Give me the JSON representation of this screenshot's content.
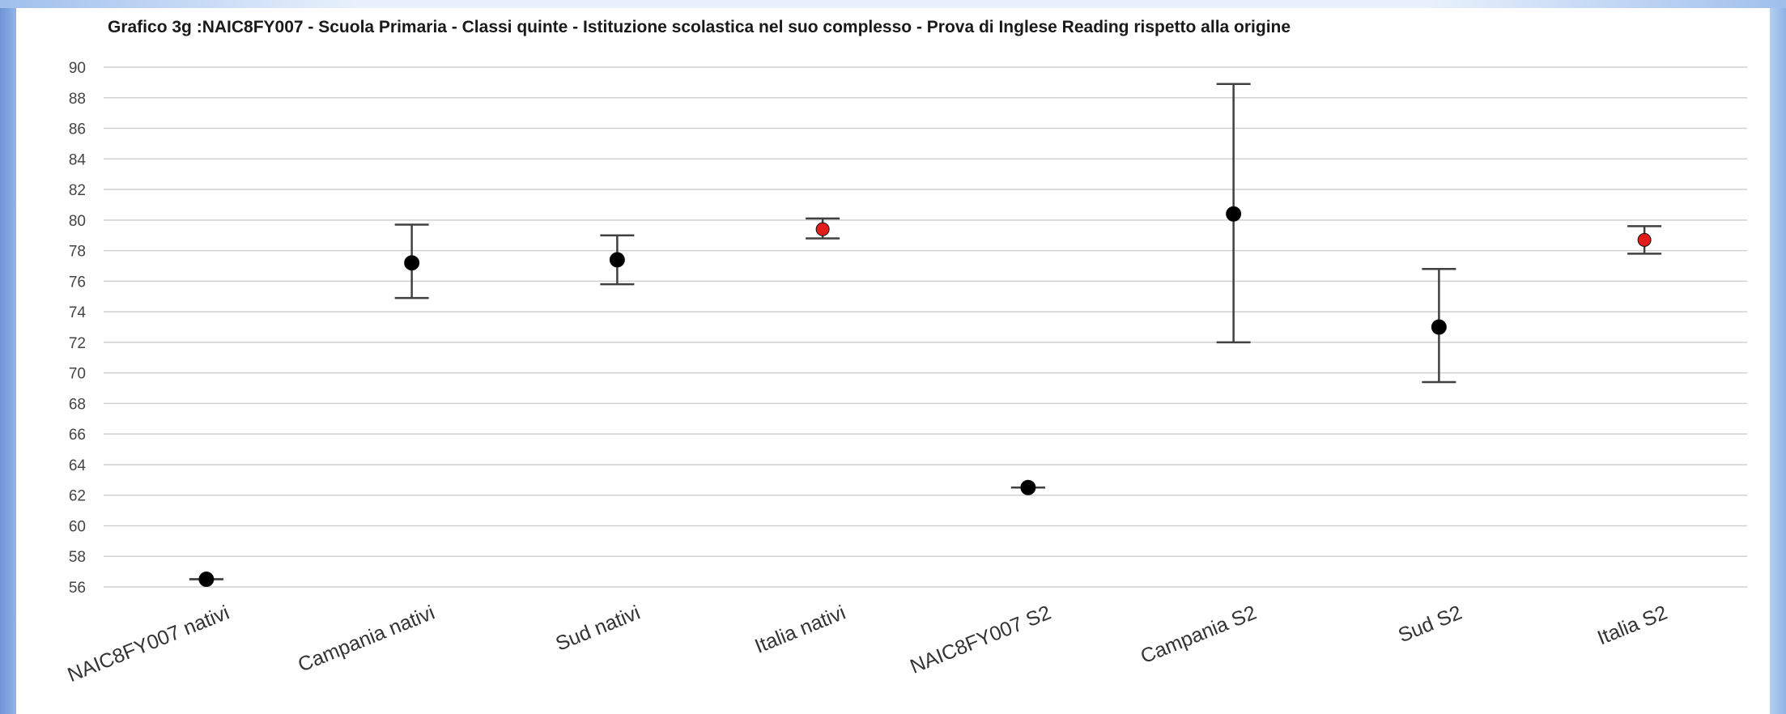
{
  "chart_data": {
    "type": "scatter",
    "title": "Grafico 3g :NAIC8FY007 - Scuola Primaria - Classi quinte - Istituzione scolastica nel suo complesso - Prova di Inglese Reading rispetto alla  origine",
    "xlabel": "",
    "ylabel": "",
    "ylim": [
      56,
      90
    ],
    "yticks": [
      56,
      58,
      60,
      62,
      64,
      66,
      68,
      70,
      72,
      74,
      76,
      78,
      80,
      82,
      84,
      86,
      88,
      90
    ],
    "grid": true,
    "legend": "none",
    "categories": [
      "NAIC8FY007 nativi",
      "Campania nativi",
      "Sud nativi",
      "Italia nativi",
      "NAIC8FY007 S2",
      "Campania S2",
      "Sud S2",
      "Italia S2"
    ],
    "values": [
      56.5,
      77.2,
      77.4,
      79.4,
      62.5,
      80.4,
      73.0,
      78.7
    ],
    "error_low": [
      56.5,
      74.9,
      75.8,
      78.8,
      62.5,
      72.0,
      69.4,
      77.8
    ],
    "error_high": [
      56.5,
      79.7,
      79.0,
      80.1,
      62.5,
      88.9,
      76.8,
      79.6
    ],
    "point_colors": [
      "#000000",
      "#000000",
      "#000000",
      "#e21b1b",
      "#000000",
      "#000000",
      "#000000",
      "#e21b1b"
    ],
    "error_bar_color": "#404040",
    "grid_color": "#d0d0d0"
  }
}
